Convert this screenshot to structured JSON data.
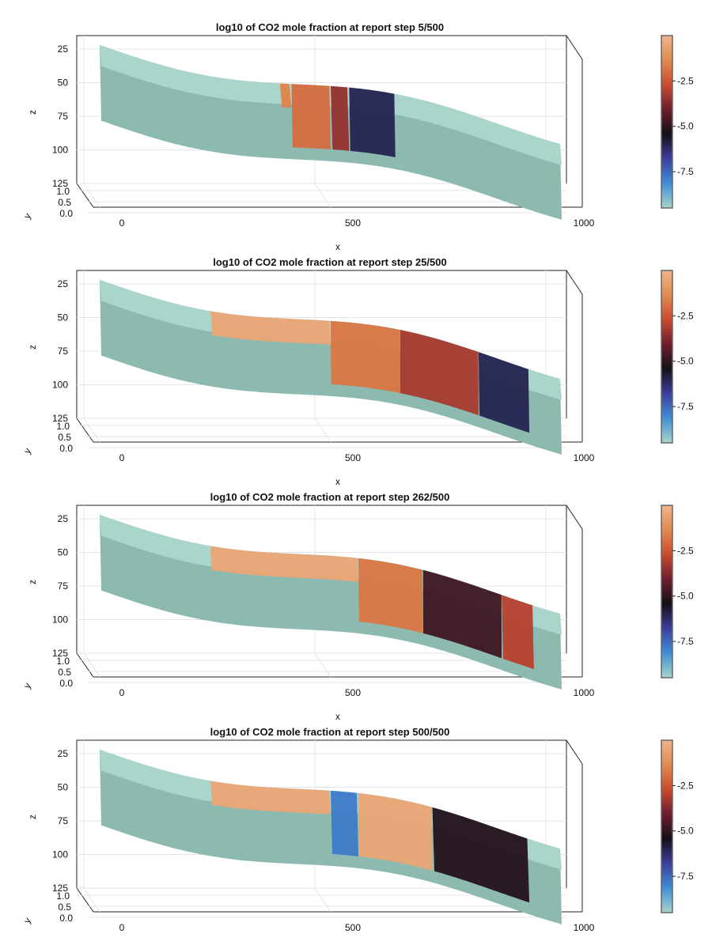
{
  "chart_data": [
    {
      "type": "heatmap",
      "title": "log10 of CO2 mole fraction at report step 5/500",
      "xlabel": "x",
      "ylabel": "y",
      "zlabel": "z",
      "xlim": [
        0,
        1000
      ],
      "ylim": [
        0,
        1
      ],
      "zlim": [
        125,
        15
      ],
      "x_ticks": [
        "0",
        "500",
        "1000"
      ],
      "y_ticks": [
        "1.0",
        "0.5",
        "0.0"
      ],
      "z_ticks": [
        "25",
        "50",
        "75",
        "100",
        "125"
      ],
      "colorbar": {
        "ticks": [
          "-2.5",
          "-5.0",
          "-7.5"
        ],
        "range": [
          -9.5,
          0
        ],
        "colormap": [
          "#a9d5cc",
          "#3f8fd6",
          "#3b3f9e",
          "#141018",
          "#6e1d2c",
          "#c94a2f",
          "#e28b4d",
          "#f0b48c"
        ]
      },
      "grid": true,
      "plume_segments_x": [
        [
          390,
          415
        ],
        [
          415,
          500
        ],
        [
          500,
          540
        ],
        [
          540,
          640
        ]
      ],
      "plume_values": [
        -1.5,
        -2.0,
        -3.5,
        -6.0
      ]
    },
    {
      "type": "heatmap",
      "title": "log10 of CO2 mole fraction at report step 25/500",
      "xlabel": "x",
      "ylabel": "y",
      "zlabel": "z",
      "xlim": [
        0,
        1000
      ],
      "ylim": [
        0,
        1
      ],
      "zlim": [
        125,
        15
      ],
      "x_ticks": [
        "0",
        "500",
        "1000"
      ],
      "y_ticks": [
        "1.0",
        "0.5",
        "0.0"
      ],
      "z_ticks": [
        "25",
        "50",
        "75",
        "100",
        "125"
      ],
      "colorbar": {
        "ticks": [
          "-2.5",
          "-5.0",
          "-7.5"
        ],
        "range": [
          -9.5,
          0
        ],
        "colormap": [
          "#a9d5cc",
          "#3f8fd6",
          "#3b3f9e",
          "#141018",
          "#6e1d2c",
          "#c94a2f",
          "#e28b4d",
          "#f0b48c"
        ]
      },
      "grid": true,
      "plume_segments_x": [
        [
          240,
          500
        ],
        [
          500,
          650
        ],
        [
          650,
          820
        ],
        [
          820,
          930
        ]
      ],
      "plume_values": [
        -0.5,
        -1.8,
        -3.2,
        -6.0
      ]
    },
    {
      "type": "heatmap",
      "title": "log10 of CO2 mole fraction at report step 262/500",
      "xlabel": "x",
      "ylabel": "y",
      "zlabel": "z",
      "xlim": [
        0,
        1000
      ],
      "ylim": [
        0,
        1
      ],
      "zlim": [
        125,
        15
      ],
      "x_ticks": [
        "0",
        "500",
        "1000"
      ],
      "y_ticks": [
        "1.0",
        "0.5",
        "0.0"
      ],
      "z_ticks": [
        "25",
        "50",
        "75",
        "100",
        "125"
      ],
      "colorbar": {
        "ticks": [
          "-2.5",
          "-5.0",
          "-7.5"
        ],
        "range": [
          -9.5,
          0
        ],
        "colormap": [
          "#a9d5cc",
          "#3f8fd6",
          "#3b3f9e",
          "#141018",
          "#6e1d2c",
          "#c94a2f",
          "#e28b4d",
          "#f0b48c"
        ]
      },
      "grid": true,
      "plume_segments_x": [
        [
          240,
          560
        ],
        [
          560,
          700
        ],
        [
          700,
          870
        ],
        [
          870,
          940
        ]
      ],
      "plume_values": [
        -0.5,
        -1.8,
        -4.8,
        -3.0
      ]
    },
    {
      "type": "heatmap",
      "title": "log10 of CO2 mole fraction at report step 500/500",
      "xlabel": "x",
      "ylabel": "y",
      "zlabel": "z",
      "xlim": [
        0,
        1000
      ],
      "ylim": [
        0,
        1
      ],
      "zlim": [
        125,
        15
      ],
      "x_ticks": [
        "0",
        "500",
        "1000"
      ],
      "y_ticks": [
        "1.0",
        "0.5",
        "0.0"
      ],
      "z_ticks": [
        "25",
        "50",
        "75",
        "100",
        "125"
      ],
      "colorbar": {
        "ticks": [
          "-2.5",
          "-5.0",
          "-7.5"
        ],
        "range": [
          -9.5,
          0
        ],
        "colormap": [
          "#a9d5cc",
          "#3f8fd6",
          "#3b3f9e",
          "#141018",
          "#6e1d2c",
          "#c94a2f",
          "#e28b4d",
          "#f0b48c"
        ]
      },
      "grid": true,
      "plume_segments_x": [
        [
          240,
          500
        ],
        [
          500,
          560
        ],
        [
          560,
          720
        ],
        [
          720,
          930
        ]
      ],
      "plume_values": [
        -0.5,
        -7.8,
        -0.5,
        -5.2
      ]
    }
  ]
}
